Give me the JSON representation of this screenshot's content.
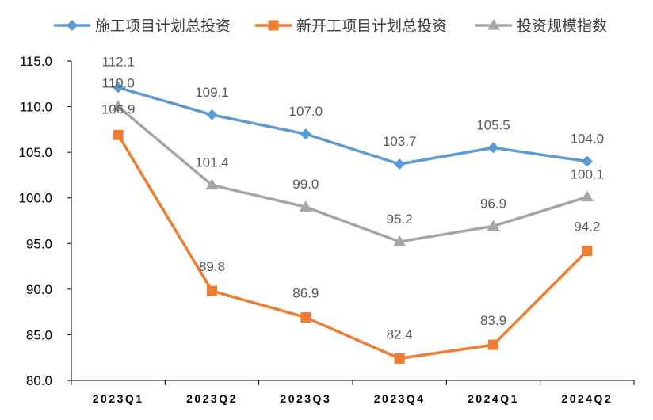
{
  "chart_data": {
    "type": "line",
    "title": "",
    "xlabel": "",
    "ylabel": "",
    "categories": [
      "2023Q1",
      "2023Q2",
      "2023Q3",
      "2023Q4",
      "2024Q1",
      "2024Q2"
    ],
    "ylim": [
      80.0,
      115.0
    ],
    "yticks": [
      "80.0",
      "85.0",
      "90.0",
      "95.0",
      "100.0",
      "105.0",
      "110.0",
      "115.0"
    ],
    "grid": false,
    "legend_position": "top",
    "series": [
      {
        "name": "施工项目计划总投资",
        "color": "#5B9BD5",
        "marker": "diamond",
        "values": [
          112.1,
          109.1,
          107.0,
          103.7,
          105.5,
          104.0
        ],
        "labels": [
          "112.1",
          "109.1",
          "107.0",
          "103.7",
          "105.5",
          "104.0"
        ]
      },
      {
        "name": "新开工项目计划总投资",
        "color": "#ED7D31",
        "marker": "square",
        "values": [
          106.9,
          89.8,
          86.9,
          82.4,
          83.9,
          94.2
        ],
        "labels": [
          "106.9",
          "89.8",
          "86.9",
          "82.4",
          "83.9",
          "94.2"
        ]
      },
      {
        "name": "投资规模指数",
        "color": "#A5A5A5",
        "marker": "triangle",
        "values": [
          110.0,
          101.4,
          99.0,
          95.2,
          96.9,
          100.1
        ],
        "labels": [
          "110.0",
          "101.4",
          "99.0",
          "95.2",
          "96.9",
          "100.1"
        ]
      }
    ]
  }
}
